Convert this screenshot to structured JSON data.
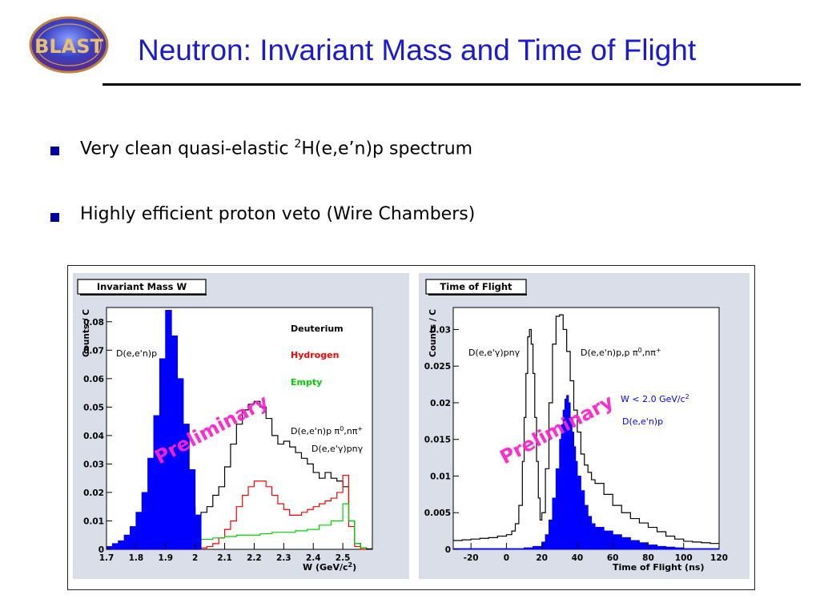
{
  "slide": {
    "title": "Neutron: Invariant Mass and Time of Flight",
    "logo_text": "BLAST",
    "bullets": [
      {
        "pre": "Very clean quasi-elastic ",
        "sup": "2",
        "post": "H(e,e’n)p spectrum"
      },
      {
        "pre": "Highly efficient proton veto (Wire Chambers)",
        "sup": "",
        "post": ""
      }
    ]
  },
  "chart_data": [
    {
      "type": "line",
      "title": "Invariant Mass W",
      "xlabel": "W (GeV/c",
      "xlabel_sup": "2",
      "xlabel_close": ")",
      "ylabel": "Counts / C",
      "xlim": [
        1.7,
        2.6
      ],
      "ylim": [
        0,
        0.085
      ],
      "xticks": [
        "1.7",
        "1.8",
        "1.9",
        "2",
        "2.1",
        "2.2",
        "2.3",
        "2.4",
        "2.5"
      ],
      "yticks": [
        "0",
        "0.01",
        "0.02",
        "0.03",
        "0.04",
        "0.05",
        "0.06",
        "0.07",
        "0.08"
      ],
      "ytick_values": [
        0,
        0.01,
        0.02,
        0.03,
        0.04,
        0.05,
        0.06,
        0.07,
        0.08
      ],
      "xtick_values": [
        1.7,
        1.8,
        1.9,
        2.0,
        2.1,
        2.2,
        2.3,
        2.4,
        2.5
      ],
      "legend": [
        {
          "label": "Deuterium",
          "color": "#000000"
        },
        {
          "label": "Hydrogen",
          "color": "#ff0000"
        },
        {
          "label": "Empty",
          "color": "#00d000"
        }
      ],
      "annotations": {
        "peak": "D(e,e'n)p",
        "pion": "D(e,e'n)p π",
        "pion_sup": "0",
        "pion_tail": ",nπ",
        "pion_sup2": "+",
        "gamma": "D(e,e'γ)pnγ",
        "watermark": "Preliminary"
      },
      "series": [
        {
          "name": "Deuterium",
          "color": "#000000",
          "x": [
            1.7,
            1.72,
            1.74,
            1.76,
            1.78,
            1.8,
            1.82,
            1.84,
            1.86,
            1.88,
            1.9,
            1.92,
            1.94,
            1.96,
            1.98,
            2.0,
            2.02,
            2.04,
            2.06,
            2.08,
            2.1,
            2.12,
            2.14,
            2.16,
            2.18,
            2.2,
            2.22,
            2.24,
            2.26,
            2.28,
            2.3,
            2.32,
            2.34,
            2.36,
            2.38,
            2.4,
            2.42,
            2.44,
            2.46,
            2.48,
            2.5,
            2.52,
            2.54,
            2.56,
            2.58
          ],
          "y": [
            0.0005,
            0.001,
            0.002,
            0.003,
            0.005,
            0.008,
            0.012,
            0.018,
            0.027,
            0.036,
            0.04,
            0.034,
            0.026,
            0.02,
            0.015,
            0.012,
            0.013,
            0.015,
            0.019,
            0.022,
            0.029,
            0.037,
            0.044,
            0.049,
            0.051,
            0.052,
            0.05,
            0.046,
            0.04,
            0.037,
            0.038,
            0.036,
            0.034,
            0.032,
            0.03,
            0.027,
            0.025,
            0.027,
            0.025,
            0.024,
            0.022,
            0.01,
            0.002,
            0.0005,
            0.0002
          ]
        },
        {
          "name": "Hydrogen",
          "color": "#ff0000",
          "x": [
            1.7,
            1.75,
            1.8,
            1.85,
            1.9,
            1.95,
            2.0,
            2.02,
            2.04,
            2.06,
            2.08,
            2.1,
            2.12,
            2.14,
            2.16,
            2.18,
            2.2,
            2.22,
            2.24,
            2.26,
            2.28,
            2.3,
            2.32,
            2.34,
            2.36,
            2.38,
            2.4,
            2.42,
            2.44,
            2.46,
            2.48,
            2.5,
            2.52,
            2.54,
            2.56
          ],
          "y": [
            0,
            0,
            0,
            0,
            0,
            0,
            0,
            0.0005,
            0.001,
            0.002,
            0.004,
            0.007,
            0.01,
            0.015,
            0.019,
            0.022,
            0.024,
            0.024,
            0.022,
            0.019,
            0.016,
            0.014,
            0.012,
            0.012,
            0.013,
            0.014,
            0.015,
            0.016,
            0.017,
            0.018,
            0.02,
            0.026,
            0.008,
            0.001,
            0
          ]
        },
        {
          "name": "Empty",
          "color": "#00d000",
          "x": [
            1.7,
            1.74,
            1.78,
            1.82,
            1.86,
            1.9,
            1.94,
            1.98,
            2.02,
            2.06,
            2.1,
            2.14,
            2.18,
            2.22,
            2.26,
            2.3,
            2.34,
            2.38,
            2.42,
            2.46,
            2.5,
            2.52,
            2.54,
            2.56
          ],
          "y": [
            0.0005,
            0.001,
            0.0015,
            0.002,
            0.0025,
            0.003,
            0.003,
            0.003,
            0.0035,
            0.004,
            0.0045,
            0.005,
            0.005,
            0.0055,
            0.006,
            0.006,
            0.0065,
            0.007,
            0.0085,
            0.01,
            0.016,
            0.01,
            0.002,
            0.0005
          ]
        },
        {
          "name": "D(e,e'n)p",
          "color": "#0000ff",
          "filled": true,
          "x": [
            1.7,
            1.72,
            1.74,
            1.76,
            1.78,
            1.8,
            1.82,
            1.84,
            1.86,
            1.88,
            1.9,
            1.92,
            1.94,
            1.96,
            1.98,
            2.0
          ],
          "y": [
            0.001,
            0.002,
            0.003,
            0.005,
            0.008,
            0.013,
            0.02,
            0.032,
            0.047,
            0.067,
            0.084,
            0.075,
            0.06,
            0.044,
            0.028,
            0.012
          ]
        }
      ]
    },
    {
      "type": "line",
      "title": "Time of Flight",
      "xlabel": "Time of Flight (ns)",
      "ylabel": "Counts / C",
      "xlim": [
        -30,
        120
      ],
      "ylim": [
        0,
        0.033
      ],
      "xticks": [
        "-20",
        "0",
        "20",
        "40",
        "60",
        "80",
        "100",
        "120"
      ],
      "xtick_values": [
        -20,
        0,
        20,
        40,
        60,
        80,
        100,
        120
      ],
      "yticks": [
        "0",
        "0.005",
        "0.01",
        "0.015",
        "0.02",
        "0.025",
        "0.03"
      ],
      "ytick_values": [
        0,
        0.005,
        0.01,
        0.015,
        0.02,
        0.025,
        0.03
      ],
      "annotations": {
        "gamma": "D(e,e'γ)pnγ",
        "pion": "D(e,e'n)p,p π",
        "pion_sup": "0",
        "pion_tail": ",nπ",
        "pion_sup2": "+",
        "cut": "W < 2.0 GeV/c",
        "cut_sup": "2",
        "signal": "D(e,e'n)p",
        "watermark": "Preliminary"
      },
      "series": [
        {
          "name": "D(e,e'γ)pnγ",
          "color": "#000000",
          "x": [
            -30,
            -25,
            -20,
            -15,
            -10,
            -5,
            0,
            3,
            5,
            7,
            9,
            10,
            11,
            12,
            13,
            14,
            15,
            16,
            17,
            18,
            19,
            20,
            22,
            24,
            26,
            28,
            30,
            32,
            34,
            36,
            38,
            40,
            42,
            44,
            46,
            48,
            50,
            55,
            60,
            65,
            70,
            75,
            80,
            85,
            90,
            95,
            100,
            105,
            110,
            115,
            120
          ],
          "y": [
            0.0012,
            0.0013,
            0.0014,
            0.0015,
            0.0016,
            0.0018,
            0.002,
            0.0025,
            0.0035,
            0.006,
            0.012,
            0.018,
            0.024,
            0.029,
            0.03,
            0.028,
            0.024,
            0.018,
            0.012,
            0.007,
            0.004,
            0.005,
            0.011,
            0.02,
            0.028,
            0.0318,
            0.032,
            0.03,
            0.027,
            0.023,
            0.019,
            0.016,
            0.013,
            0.0115,
            0.0105,
            0.0095,
            0.009,
            0.0075,
            0.006,
            0.005,
            0.0042,
            0.0036,
            0.003,
            0.0024,
            0.0018,
            0.0014,
            0.0011,
            0.001,
            0.0009,
            0.0008,
            0.0008
          ]
        },
        {
          "name": "D(e,e'n)p",
          "color": "#0000ff",
          "filled": true,
          "x": [
            -30,
            -20,
            -10,
            0,
            10,
            15,
            20,
            22,
            24,
            26,
            28,
            30,
            31,
            32,
            33,
            34,
            35,
            36,
            37,
            38,
            39,
            40,
            42,
            44,
            46,
            48,
            50,
            55,
            60,
            65,
            70,
            75,
            80,
            85,
            90,
            95,
            100,
            110,
            120
          ],
          "y": [
            0.0001,
            0.0001,
            0.0001,
            0.0001,
            0.0002,
            0.0004,
            0.001,
            0.002,
            0.004,
            0.007,
            0.011,
            0.015,
            0.017,
            0.019,
            0.0205,
            0.021,
            0.02,
            0.018,
            0.016,
            0.014,
            0.012,
            0.01,
            0.008,
            0.006,
            0.0045,
            0.0035,
            0.003,
            0.0025,
            0.002,
            0.0016,
            0.0012,
            0.0009,
            0.0006,
            0.0004,
            0.0003,
            0.0002,
            0.0001,
            0.0001,
            0.0001
          ]
        }
      ]
    }
  ]
}
